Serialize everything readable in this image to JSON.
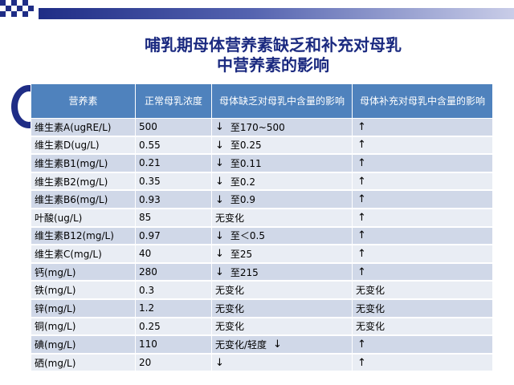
{
  "title": "哺乳期母体营养素缺乏和补充对母乳中营养素的影响",
  "title_line1": "哺乳期母体营养素缺乏和补充对母乳",
  "title_line2": "中营养素的影响",
  "table": {
    "headers": [
      "营养素",
      "正常母乳浓度",
      "母体缺乏对母乳中含量的影响",
      "母体补充对母乳中含量的影响"
    ],
    "rows": [
      {
        "nutrient": "维生素A(ugRE/L)",
        "normal": "500",
        "deficiency_arrow": "down",
        "deficiency": "至170~500",
        "supplement_arrow": "up",
        "supplement": ""
      },
      {
        "nutrient": "维生素D(ug/L)",
        "normal": "0.55",
        "deficiency_arrow": "down",
        "deficiency": "至0.25",
        "supplement_arrow": "up",
        "supplement": ""
      },
      {
        "nutrient": "维生素B1(mg/L)",
        "normal": "0.21",
        "deficiency_arrow": "down",
        "deficiency": "至0.11",
        "supplement_arrow": "up",
        "supplement": ""
      },
      {
        "nutrient": "维生素B2(mg/L)",
        "normal": "0.35",
        "deficiency_arrow": "down",
        "deficiency": "至0.2",
        "supplement_arrow": "up",
        "supplement": ""
      },
      {
        "nutrient": "维生素B6(mg/L)",
        "normal": "0.93",
        "deficiency_arrow": "down",
        "deficiency": "至0.9",
        "supplement_arrow": "up",
        "supplement": ""
      },
      {
        "nutrient": "叶酸(ug/L)",
        "normal": "85",
        "deficiency_arrow": "",
        "deficiency": "无变化",
        "supplement_arrow": "up",
        "supplement": ""
      },
      {
        "nutrient": "维生素B12(mg/L)",
        "normal": "0.97",
        "deficiency_arrow": "down",
        "deficiency": "至＜0.5",
        "supplement_arrow": "up",
        "supplement": ""
      },
      {
        "nutrient": "维生素C(mg/L)",
        "normal": "40",
        "deficiency_arrow": "down",
        "deficiency": "至25",
        "supplement_arrow": "up",
        "supplement": ""
      },
      {
        "nutrient": "钙(mg/L)",
        "normal": "280",
        "deficiency_arrow": "down",
        "deficiency": "至215",
        "supplement_arrow": "up",
        "supplement": ""
      },
      {
        "nutrient": "铁(mg/L)",
        "normal": "0.3",
        "deficiency_arrow": "",
        "deficiency": "无变化",
        "supplement_arrow": "",
        "supplement": "无变化"
      },
      {
        "nutrient": "锌(mg/L)",
        "normal": "1.2",
        "deficiency_arrow": "",
        "deficiency": "无变化",
        "supplement_arrow": "",
        "supplement": "无变化"
      },
      {
        "nutrient": "铜(mg/L)",
        "normal": "0.25",
        "deficiency_arrow": "",
        "deficiency": "无变化",
        "supplement_arrow": "",
        "supplement": "无变化"
      },
      {
        "nutrient": "碘(mg/L)",
        "normal": "110",
        "deficiency_arrow": "down-after",
        "deficiency": "无变化/轻度",
        "supplement_arrow": "up",
        "supplement": ""
      },
      {
        "nutrient": "硒(mg/L)",
        "normal": "20",
        "deficiency_arrow": "down",
        "deficiency": "",
        "supplement_arrow": "up",
        "supplement": ""
      }
    ]
  },
  "colors": {
    "title": "#1b2a80",
    "header_bg": "#4f82bd",
    "row_odd": "#d0d8e8",
    "row_even": "#e9edf4",
    "accent": "#1f2d86"
  }
}
